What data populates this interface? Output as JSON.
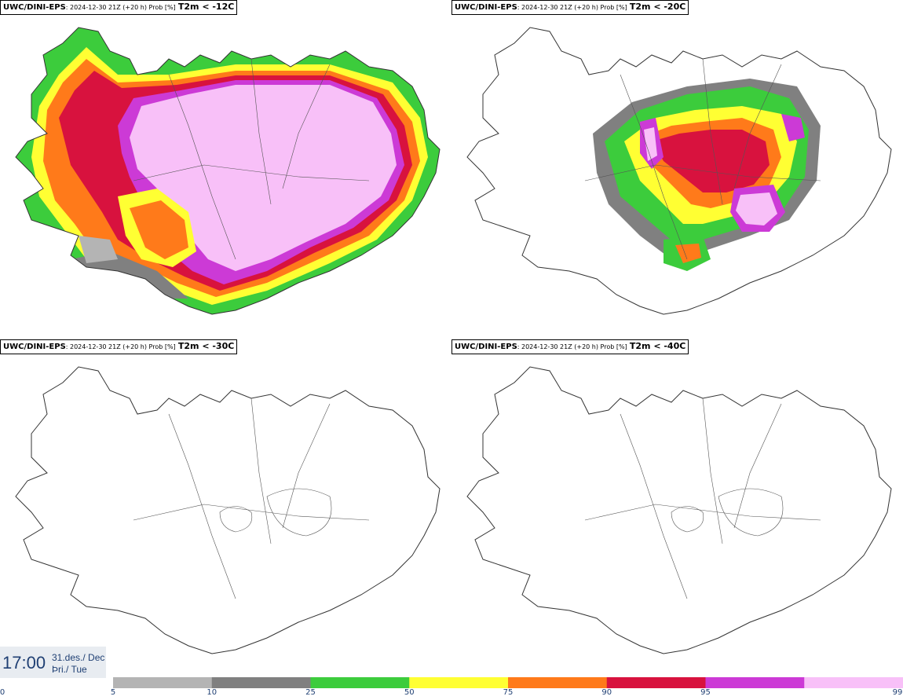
{
  "panels": [
    {
      "model": "UWC/DINI-EPS",
      "run": ": 2024-12-30 21Z (+20 h) Prob [%]",
      "var": "T2m < -12C",
      "coverage": "high"
    },
    {
      "model": "UWC/DINI-EPS",
      "run": ": 2024-12-30 21Z (+20 h) Prob [%]",
      "var": "T2m < -20C",
      "coverage": "medium"
    },
    {
      "model": "UWC/DINI-EPS",
      "run": ": 2024-12-30 21Z (+20 h) Prob [%]",
      "var": "T2m < -30C",
      "coverage": "none"
    },
    {
      "model": "UWC/DINI-EPS",
      "run": ": 2024-12-30 21Z (+20 h) Prob [%]",
      "var": "T2m < -40C",
      "coverage": "none"
    }
  ],
  "time": {
    "clock": "17:00",
    "date_line1": "31.des./ Dec",
    "date_line2": "Þri./ Tue"
  },
  "legend": {
    "ticks": [
      "0",
      "5",
      "10",
      "25",
      "50",
      "75",
      "90",
      "95",
      "99"
    ],
    "colors": [
      "#b4b4b4",
      "#808080",
      "#3ccc3c",
      "#ffff33",
      "#ff7a1a",
      "#d8123e",
      "#cc3ad6",
      "#f8c0f8"
    ]
  },
  "colors": {
    "outline": "#333333",
    "gray_light": "#b4b4b4",
    "gray_dark": "#808080",
    "green": "#3ccc3c",
    "yellow": "#ffff33",
    "orange": "#ff7a1a",
    "red": "#d8123e",
    "purple": "#cc3ad6",
    "pink": "#f8c0f8"
  }
}
